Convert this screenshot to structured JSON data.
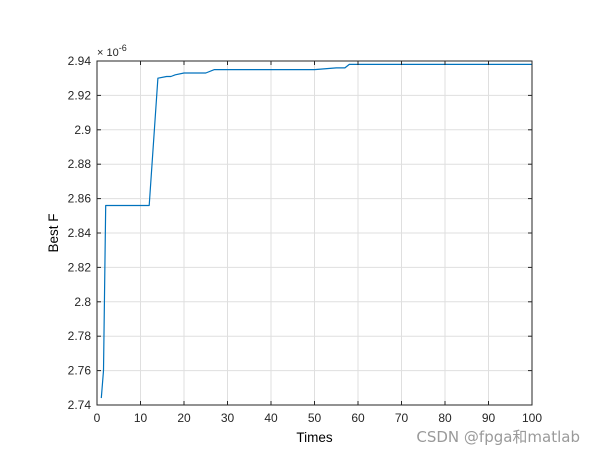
{
  "chart_data": {
    "type": "line",
    "xlabel": "Times",
    "ylabel": "Best F",
    "y_exponent_label": "-6",
    "xlim": [
      0,
      100
    ],
    "ylim": [
      2.74,
      2.94
    ],
    "xticks": [
      0,
      10,
      20,
      30,
      40,
      50,
      60,
      70,
      80,
      90,
      100
    ],
    "yticks": [
      2.74,
      2.76,
      2.78,
      2.8,
      2.82,
      2.84,
      2.86,
      2.88,
      2.9,
      2.92,
      2.94
    ],
    "xtick_labels": [
      "0",
      "10",
      "20",
      "30",
      "40",
      "50",
      "60",
      "70",
      "80",
      "90",
      "100"
    ],
    "ytick_labels": [
      "2.74",
      "2.76",
      "2.78",
      "2.8",
      "2.82",
      "2.84",
      "2.86",
      "2.88",
      "2.9",
      "2.92",
      "2.94"
    ],
    "grid": true,
    "series": [
      {
        "color": "#0072BD",
        "x": [
          1,
          1.5,
          2,
          3,
          4,
          6,
          8,
          10,
          12,
          14,
          16,
          17,
          18,
          20,
          22,
          25,
          27,
          30,
          35,
          40,
          45,
          50,
          55,
          57,
          58,
          60,
          70,
          80,
          90,
          100
        ],
        "y": [
          2.744,
          2.76,
          2.856,
          2.856,
          2.856,
          2.856,
          2.856,
          2.856,
          2.856,
          2.93,
          2.931,
          2.931,
          2.932,
          2.933,
          2.933,
          2.933,
          2.935,
          2.935,
          2.935,
          2.935,
          2.935,
          2.935,
          2.936,
          2.936,
          2.938,
          2.938,
          2.938,
          2.938,
          2.938,
          2.938
        ]
      }
    ]
  },
  "exponent_prefix": "× 10",
  "watermark": "CSDN @fpga和matlab"
}
